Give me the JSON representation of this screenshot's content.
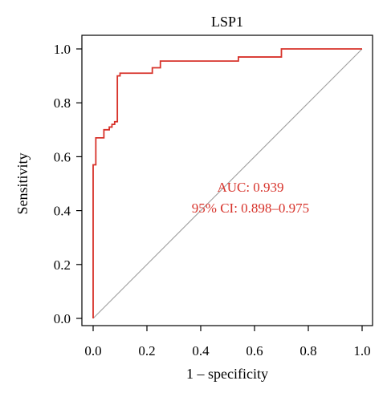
{
  "chart_data": {
    "type": "line",
    "title": "LSP1",
    "xlabel": "1 – specificity",
    "ylabel": "Sensitivity",
    "xlim": [
      0,
      1
    ],
    "ylim": [
      0,
      1
    ],
    "x_ticks": [
      "0.0",
      "0.2",
      "0.4",
      "0.6",
      "0.8",
      "1.0"
    ],
    "y_ticks": [
      "0.0",
      "0.2",
      "0.4",
      "0.6",
      "0.8",
      "1.0"
    ],
    "grid": false,
    "series": [
      {
        "color": "#d7322a",
        "points": [
          [
            0.0,
            0.0
          ],
          [
            0.0,
            0.57
          ],
          [
            0.01,
            0.57
          ],
          [
            0.01,
            0.67
          ],
          [
            0.04,
            0.67
          ],
          [
            0.04,
            0.7
          ],
          [
            0.06,
            0.7
          ],
          [
            0.06,
            0.71
          ],
          [
            0.07,
            0.71
          ],
          [
            0.07,
            0.72
          ],
          [
            0.08,
            0.72
          ],
          [
            0.08,
            0.73
          ],
          [
            0.09,
            0.73
          ],
          [
            0.09,
            0.9
          ],
          [
            0.1,
            0.9
          ],
          [
            0.1,
            0.91
          ],
          [
            0.22,
            0.91
          ],
          [
            0.22,
            0.93
          ],
          [
            0.25,
            0.93
          ],
          [
            0.25,
            0.955
          ],
          [
            0.54,
            0.955
          ],
          [
            0.54,
            0.97
          ],
          [
            0.7,
            0.97
          ],
          [
            0.7,
            1.0
          ],
          [
            1.0,
            1.0
          ]
        ]
      },
      {
        "color": "#a0a0a0",
        "points": [
          [
            0,
            0
          ],
          [
            1,
            1
          ]
        ]
      }
    ],
    "annotations": [
      "AUC: 0.939",
      "95% CI: 0.898–0.975"
    ],
    "annotation_color": "#d7322a"
  }
}
